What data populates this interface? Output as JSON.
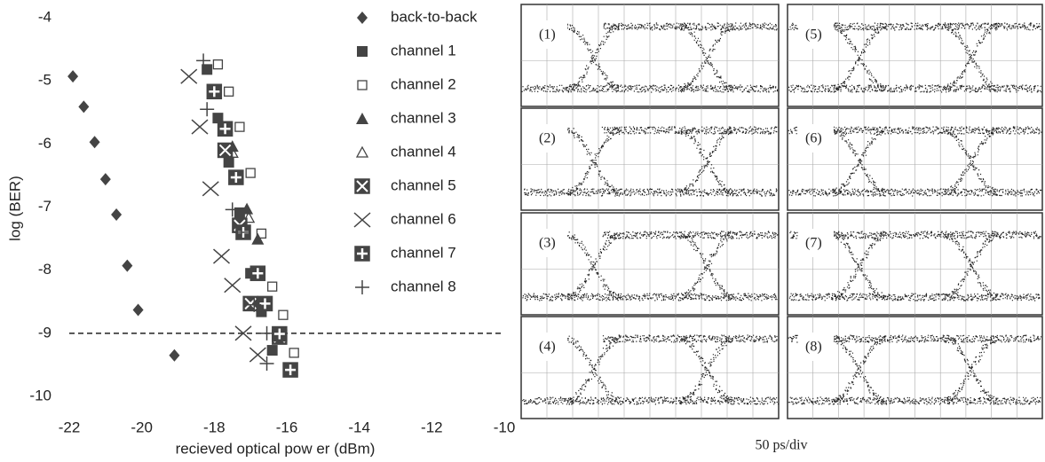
{
  "chart_data": {
    "type": "scatter",
    "xlabel": "recieved optical pow er (dBm)",
    "ylabel": "log (BER)",
    "xlim": [
      -22,
      -10
    ],
    "ylim": [
      -10,
      -4
    ],
    "xticks": [
      -22,
      -20,
      -18,
      -16,
      -14,
      -12,
      -10
    ],
    "yticks": [
      -10,
      -9,
      -8,
      -7,
      -6,
      -5,
      -4
    ],
    "reference_line": -9,
    "series": [
      {
        "name": "back-to-back",
        "marker": "diamond",
        "color": "#444",
        "x": [
          -21.9,
          -21.6,
          -21.3,
          -21.0,
          -20.7,
          -20.4,
          -20.1,
          -19.1
        ],
        "values": [
          -4.93,
          -5.41,
          -5.97,
          -6.56,
          -7.12,
          -7.93,
          -8.63,
          -9.35
        ]
      },
      {
        "name": "channel 1",
        "marker": "square",
        "color": "#444",
        "x": [
          -18.2,
          -17.9,
          -17.6,
          -17.3,
          -17.0,
          -16.7,
          -16.4
        ],
        "values": [
          -4.82,
          -5.59,
          -6.29,
          -7.09,
          -8.05,
          -8.66,
          -9.27
        ]
      },
      {
        "name": "channel 2",
        "marker": "open-square",
        "color": "#444",
        "x": [
          -17.9,
          -17.6,
          -17.3,
          -17.0,
          -16.7,
          -16.4,
          -16.1,
          -15.8
        ],
        "values": [
          -4.74,
          -5.17,
          -5.73,
          -6.46,
          -7.42,
          -8.26,
          -8.71,
          -9.31
        ]
      },
      {
        "name": "channel 3",
        "marker": "triangle",
        "color": "#444",
        "x": [
          -17.5,
          -17.1,
          -16.8
        ],
        "values": [
          -6.04,
          -7.03,
          -7.51
        ]
      },
      {
        "name": "channel 4",
        "marker": "open-triangle",
        "color": "#444",
        "x": [
          -17.5,
          -17.05
        ],
        "values": [
          -6.14,
          -7.17
        ]
      },
      {
        "name": "channel 5",
        "marker": "boxed-x",
        "color": "#444",
        "x": [
          -17.7,
          -17.3,
          -17.0,
          -16.2
        ],
        "values": [
          -6.1,
          -7.29,
          -8.53,
          -9.06
        ]
      },
      {
        "name": "channel 6",
        "marker": "x",
        "color": "#444",
        "x": [
          -18.7,
          -18.4,
          -18.1,
          -17.8,
          -17.5,
          -17.2,
          -16.8
        ],
        "values": [
          -4.93,
          -5.73,
          -6.71,
          -7.78,
          -8.24,
          -9.0,
          -9.34
        ]
      },
      {
        "name": "channel 7",
        "marker": "boxed-plus",
        "color": "#444",
        "x": [
          -18.0,
          -17.7,
          -17.4,
          -17.2,
          -16.8,
          -16.6,
          -16.2,
          -15.9
        ],
        "values": [
          -5.17,
          -5.76,
          -6.53,
          -7.4,
          -8.05,
          -8.53,
          -9.01,
          -9.58
        ]
      },
      {
        "name": "channel 8",
        "marker": "plus",
        "color": "#444",
        "x": [
          -18.3,
          -18.2,
          -17.5,
          -17.25,
          -16.9,
          -16.55,
          -16.55
        ],
        "values": [
          -4.68,
          -5.45,
          -7.04,
          -7.4,
          -8.55,
          -9.0,
          -9.48
        ]
      }
    ]
  },
  "eye_diagrams": {
    "panels": [
      "(1)",
      "(2)",
      "(3)",
      "(4)",
      "(5)",
      "(6)",
      "(7)",
      "(8)"
    ],
    "caption": "50 ps/div"
  }
}
